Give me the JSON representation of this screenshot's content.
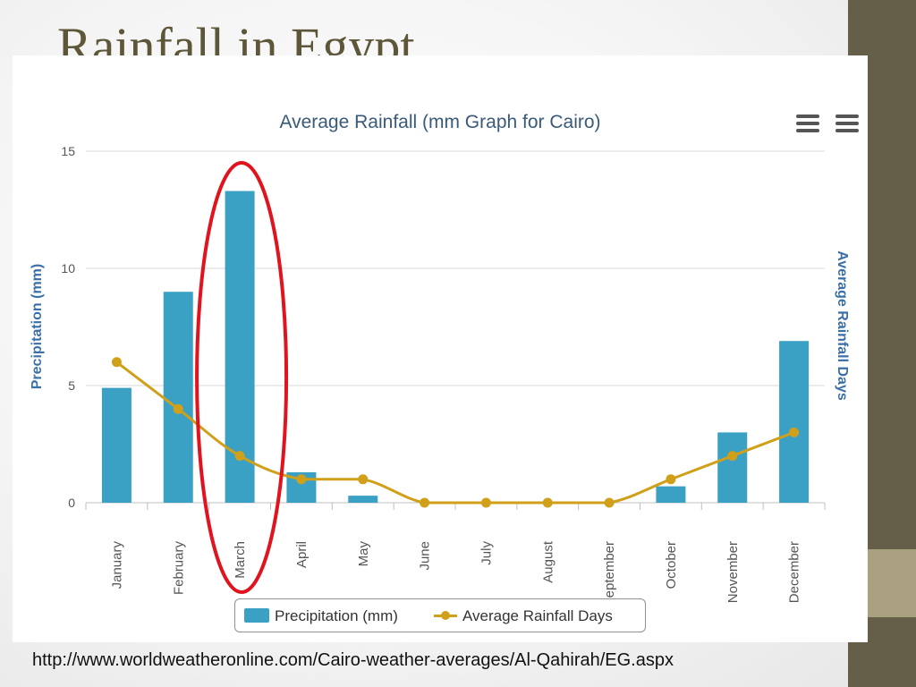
{
  "slide": {
    "title": "Rainfall in Egypt",
    "source_url": "http://www.worldweatheronline.com/Cairo-weather-averages/Al-Qahirah/EG.aspx"
  },
  "colors": {
    "precipitation": "#3aa0c4",
    "rainfall_days": "#d1a01a",
    "highlight_ellipse": "#e0141e",
    "axis_title": "#3a6fa8",
    "chart_title": "#3a5a7a"
  },
  "icons": [
    "menu-icon",
    "menu-icon"
  ],
  "chart_data": {
    "type": "bar",
    "title": "Average Rainfall (mm Graph for Cairo)",
    "ylabel": "Precipitation (mm)",
    "y2label": "Average Rainfall Days",
    "ylim": [
      0,
      15
    ],
    "yticks": [
      0,
      5,
      10,
      15
    ],
    "grid": true,
    "legend_position": "bottom-center",
    "categories": [
      "January",
      "February",
      "March",
      "April",
      "May",
      "June",
      "July",
      "August",
      "September",
      "October",
      "November",
      "December"
    ],
    "series": [
      {
        "name": "Precipitation (mm)",
        "type": "bar",
        "values": [
          4.9,
          9.0,
          13.3,
          1.3,
          0.3,
          0,
          0,
          0,
          0,
          0.7,
          3.0,
          6.9
        ]
      },
      {
        "name": "Average Rainfall Days",
        "type": "line",
        "values": [
          6,
          4,
          2,
          1,
          1,
          0,
          0,
          0,
          0,
          1,
          2,
          3
        ]
      }
    ],
    "annotations": [
      {
        "type": "ellipse",
        "category": "March",
        "note": "highlight"
      }
    ]
  }
}
